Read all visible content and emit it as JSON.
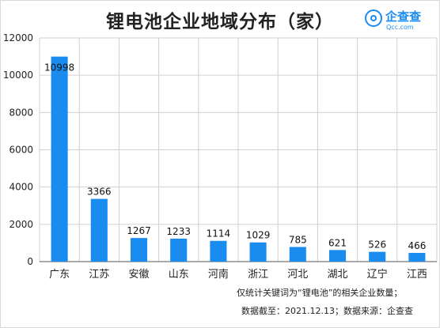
{
  "title": "锂电池企业地域分布（家）",
  "logo": {
    "name": "企查查",
    "domain": "Qcc.com"
  },
  "notes": {
    "line1": "仅统计关键词为“锂电池”的相关企业数量；",
    "line2": "数据截至：2021.12.13；数据来源：企查查"
  },
  "colors": {
    "bar": "#1a8cf0",
    "grid": "#d0d0d0",
    "axis": "#555555"
  },
  "chart_data": {
    "type": "bar",
    "categories": [
      "广东",
      "江苏",
      "安徽",
      "山东",
      "河南",
      "浙江",
      "河北",
      "湖北",
      "辽宁",
      "江西"
    ],
    "values": [
      10998,
      3366,
      1267,
      1233,
      1114,
      1029,
      785,
      621,
      526,
      466
    ],
    "data_labels": [
      "10998",
      "3366",
      "1267",
      "1233",
      "1114",
      "1029",
      "785",
      "621",
      "526",
      "466"
    ],
    "yticks": [
      0,
      2000,
      4000,
      6000,
      8000,
      10000,
      12000
    ],
    "ylim": [
      0,
      12000
    ],
    "title": "锂电池企业地域分布（家）",
    "xlabel": "",
    "ylabel": "",
    "grid": true,
    "legend": "none"
  }
}
